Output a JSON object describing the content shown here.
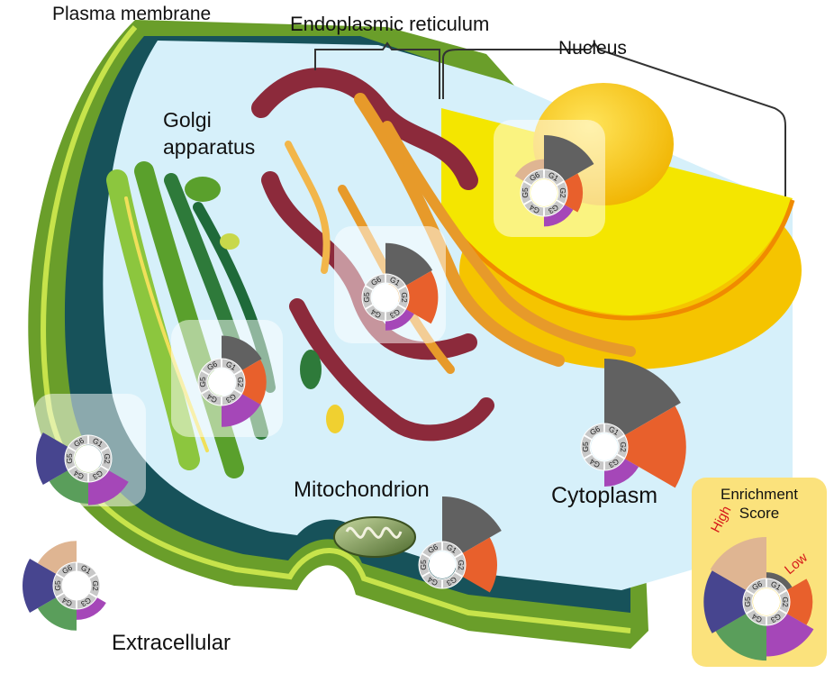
{
  "labels": {
    "plasma_membrane": "Plasma membrane",
    "endoplasmic_reticulum": "Endoplasmic reticulum",
    "nucleus": "Nucleus",
    "golgi_line1": "Golgi",
    "golgi_line2": "apparatus",
    "mitochondrion": "Mitochondrion",
    "cytoplasm": "Cytoplasm",
    "extracellular": "Extracellular"
  },
  "legend": {
    "title_line1": "Enrichment",
    "title_line2": "Score",
    "high": "High",
    "low": "Low"
  },
  "colors": {
    "G1": "#616161",
    "G2": "#e8602c",
    "G3": "#a547b8",
    "G4": "#5a9e5b",
    "G5": "#47458f",
    "G6": "#dfb592",
    "ring": "#c8c8c8",
    "membrane_outer": "#6a9e2a",
    "membrane_inner": "#17525a",
    "cytosol": "#d6f0fa",
    "nucleus": "#f5c400",
    "golgi": "#8cc63e",
    "er": "#8c2a3b",
    "legend_bg": "#fbe27c"
  },
  "chart_data": {
    "type": "radial-bar",
    "groups": [
      "G1",
      "G2",
      "G3",
      "G4",
      "G5",
      "G6"
    ],
    "charts": [
      {
        "name": "Nucleus",
        "values": {
          "G1": 1.0,
          "G2": 0.45,
          "G3": 0.3,
          "G4": 0,
          "G5": 0,
          "G6": 0.3
        }
      },
      {
        "name": "Endoplasmic reticulum",
        "values": {
          "G1": 0.95,
          "G2": 0.9,
          "G3": 0.3,
          "G4": 0,
          "G5": 0,
          "G6": 0
        }
      },
      {
        "name": "Golgi apparatus",
        "values": {
          "G1": 0.75,
          "G2": 0.7,
          "G3": 0.7,
          "G4": 0,
          "G5": 0,
          "G6": 0
        }
      },
      {
        "name": "Plasma membrane",
        "values": {
          "G1": 0,
          "G2": 0,
          "G3": 0.8,
          "G4": 0.75,
          "G5": 1.0,
          "G6": 0
        }
      },
      {
        "name": "Mitochondrion",
        "values": {
          "G1": 1.0,
          "G2": 0.7,
          "G3": 0,
          "G4": 0,
          "G5": 0,
          "G6": 0
        }
      },
      {
        "name": "Cytoplasm",
        "values": {
          "G1": 1.0,
          "G2": 0.9,
          "G3": 0.25,
          "G4": 0,
          "G5": 0,
          "G6": 0
        }
      },
      {
        "name": "Extracellular",
        "values": {
          "G1": 0,
          "G2": 0,
          "G3": 0.35,
          "G4": 0.7,
          "G5": 1.0,
          "G6": 0.7
        }
      },
      {
        "name": "Legend",
        "values": {
          "G1": 0.15,
          "G2": 0.55,
          "G3": 0.75,
          "G4": 0.85,
          "G5": 0.95,
          "G6": 1.0
        }
      }
    ]
  }
}
